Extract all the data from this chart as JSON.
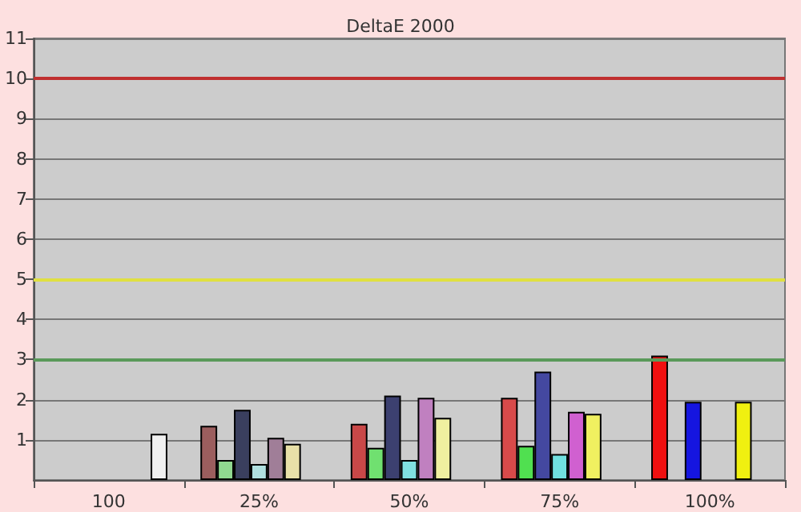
{
  "chart_data": {
    "type": "bar",
    "title": "DeltaE 2000",
    "categories": [
      "100",
      "25%",
      "50%",
      "75%",
      "100%"
    ],
    "series": [
      {
        "colors": [
          "#c04040",
          "#9b5e5e",
          "#c94848",
          "#d84a4a",
          "#f01010"
        ],
        "values": [
          null,
          1.35,
          1.4,
          2.05,
          3.1
        ]
      },
      {
        "colors": [
          "#60d060",
          "#90d890",
          "#70e070",
          "#50e050",
          "#30d030"
        ],
        "values": [
          null,
          0.5,
          0.8,
          0.85,
          null
        ]
      },
      {
        "colors": [
          "#3c4070",
          "#3a3f5e",
          "#3c4070",
          "#4448a0",
          "#1515e0"
        ],
        "values": [
          null,
          1.75,
          2.1,
          2.7,
          1.95
        ]
      },
      {
        "colors": [
          "#80e0e0",
          "#b0e0e0",
          "#80e0e0",
          "#70e0e0",
          "#30e0e0"
        ],
        "values": [
          null,
          0.4,
          0.5,
          0.65,
          null
        ]
      },
      {
        "colors": [
          "#c060c0",
          "#a07e98",
          "#c080c0",
          "#d060d0",
          "#e020e0"
        ],
        "values": [
          null,
          1.05,
          2.05,
          1.7,
          null
        ]
      },
      {
        "colors": [
          "#f0f060",
          "#e8e0a8",
          "#f0f0a0",
          "#f0f060",
          "#f0f010"
        ],
        "values": [
          null,
          0.9,
          1.55,
          1.65,
          1.95
        ]
      },
      {
        "colors": [
          "#f0f0f0",
          "#f0f0f0",
          "#f0f0f0",
          "#f0f0f0",
          "#f0f0f0"
        ],
        "values": [
          1.15,
          null,
          null,
          null,
          null
        ]
      }
    ],
    "ylim": [
      0,
      11
    ],
    "yticks": [
      1,
      2,
      3,
      4,
      5,
      6,
      7,
      8,
      9,
      10,
      11
    ],
    "grid": "y",
    "ref_lines": [
      {
        "axis": "y",
        "value": 10,
        "color": "#c03030"
      },
      {
        "axis": "y",
        "value": 5,
        "color": "#e0e040"
      },
      {
        "axis": "y",
        "value": 3,
        "color": "#5a9a5a"
      }
    ]
  }
}
